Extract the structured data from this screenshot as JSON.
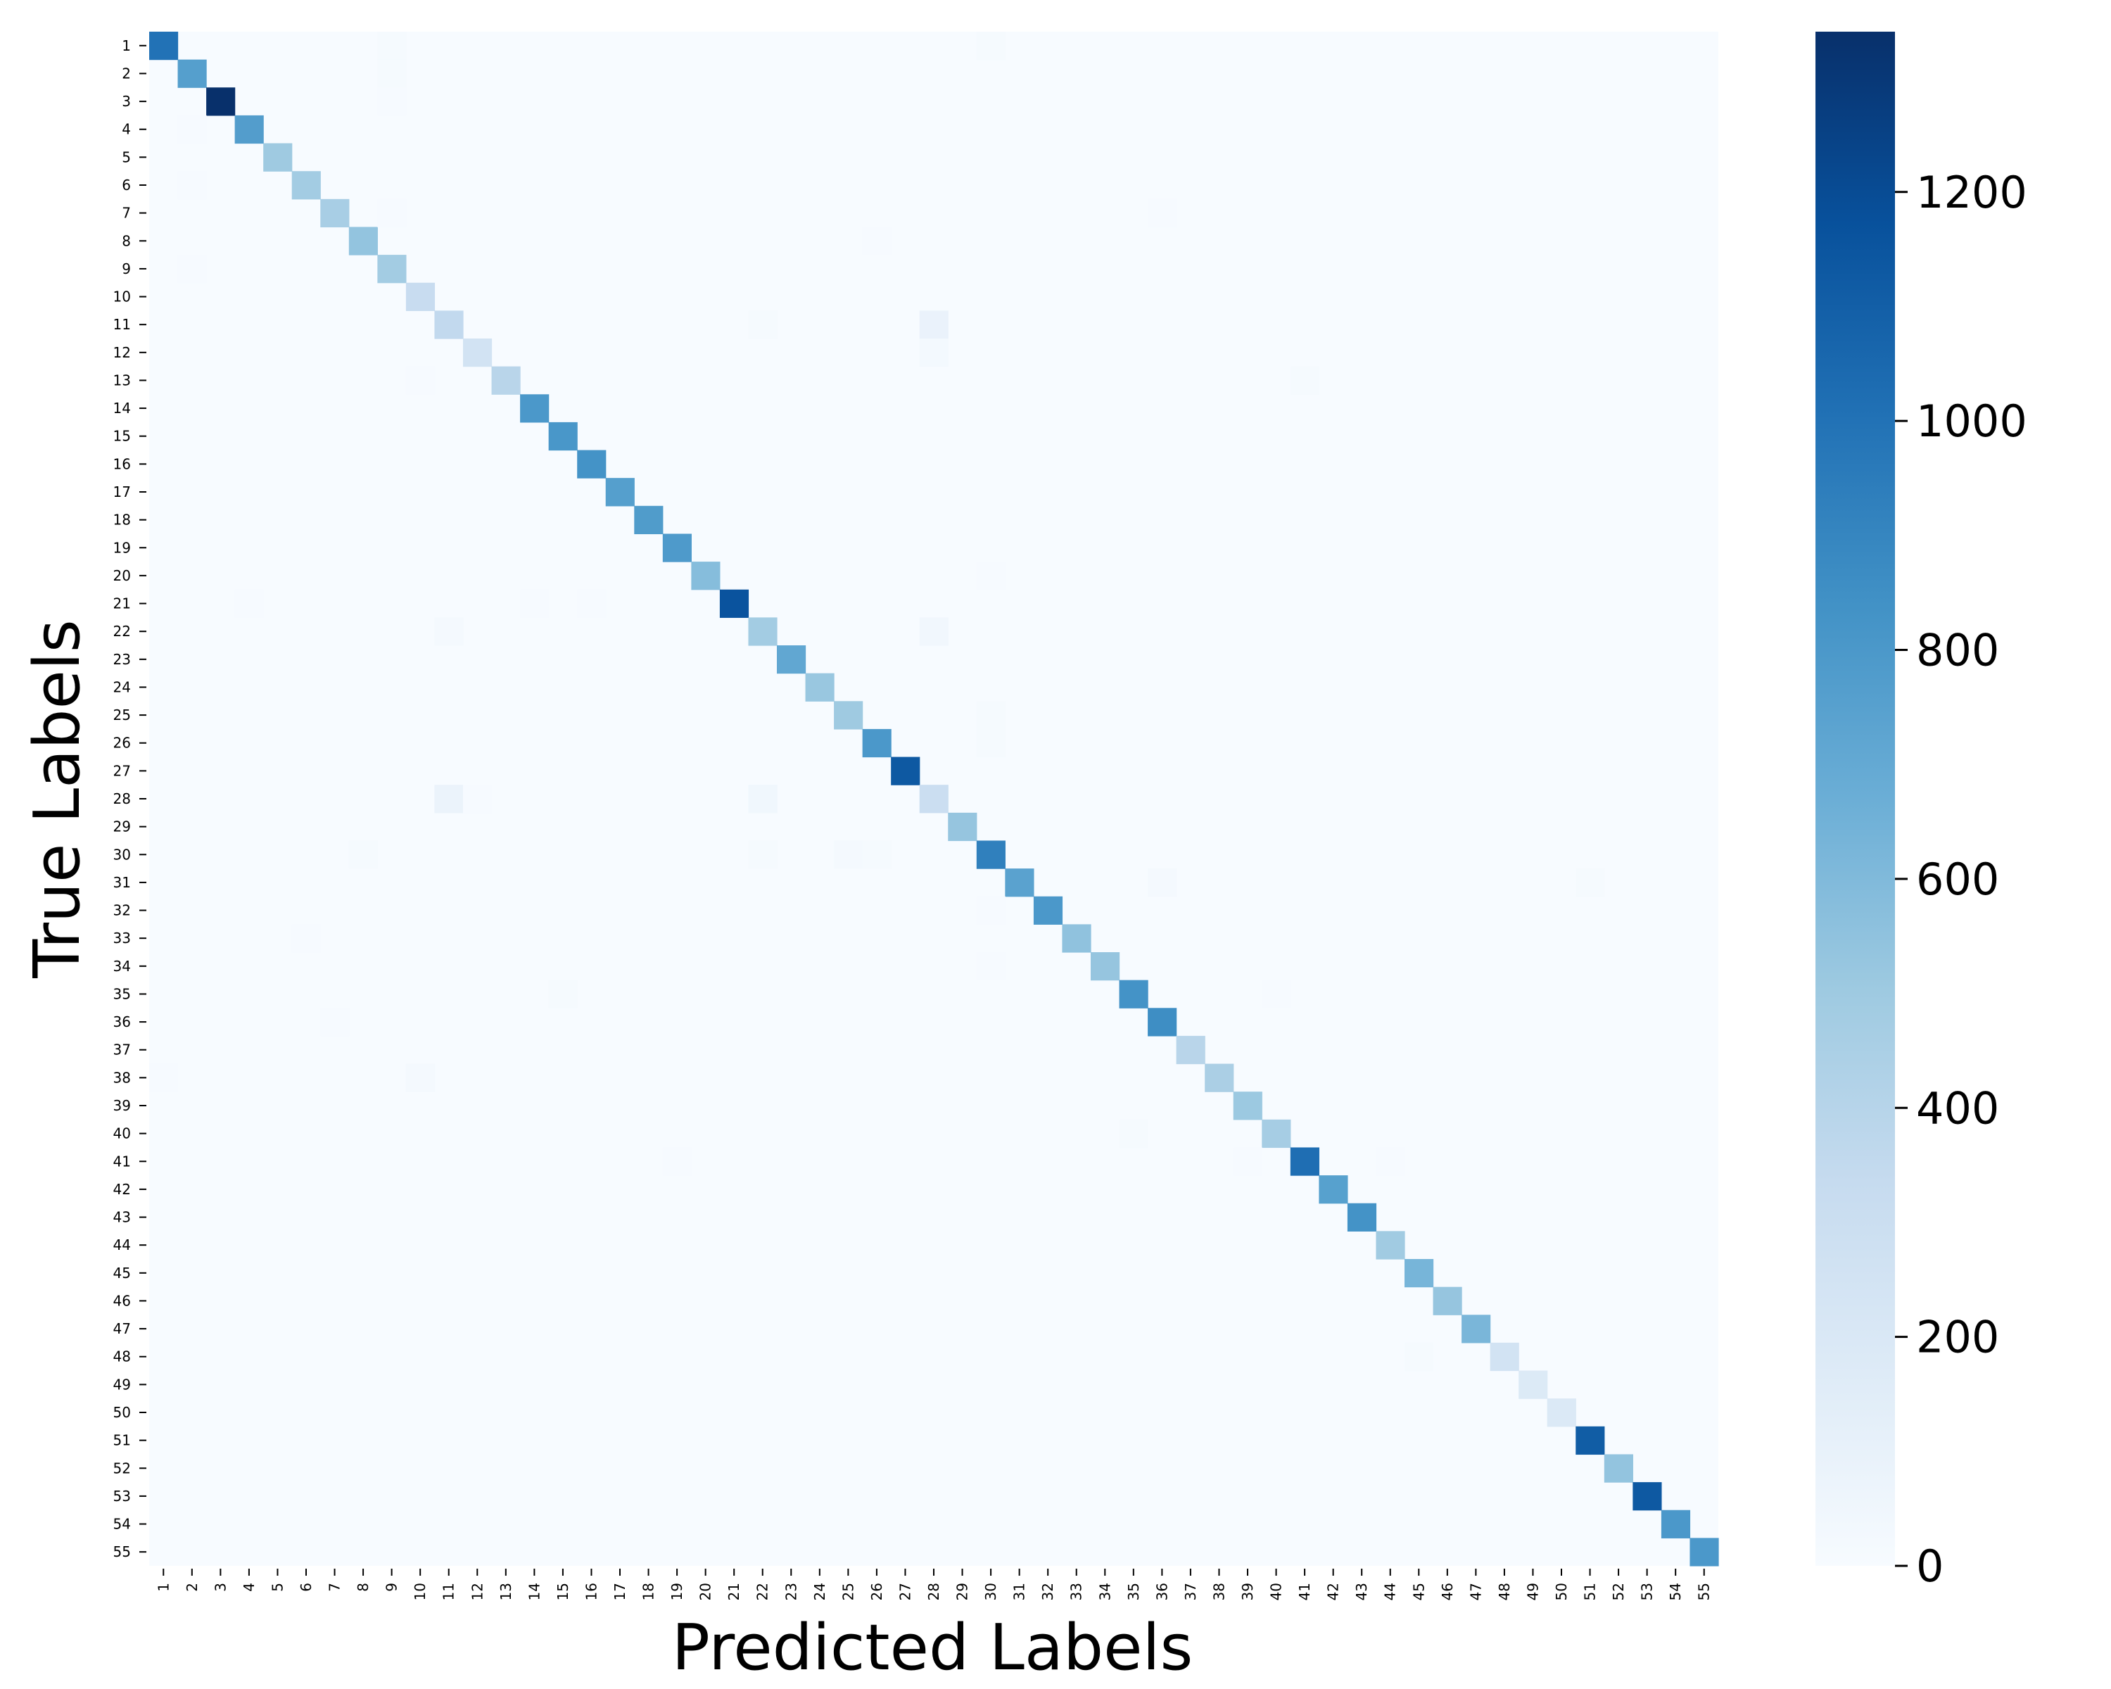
{
  "chart_data": {
    "type": "heatmap",
    "title": "",
    "xlabel": "Predicted Labels",
    "ylabel": "True Labels",
    "labels": [
      "1",
      "2",
      "3",
      "4",
      "5",
      "6",
      "7",
      "8",
      "9",
      "10",
      "11",
      "12",
      "13",
      "14",
      "15",
      "16",
      "17",
      "18",
      "19",
      "20",
      "21",
      "22",
      "23",
      "24",
      "25",
      "26",
      "27",
      "28",
      "29",
      "30",
      "31",
      "32",
      "33",
      "34",
      "35",
      "36",
      "37",
      "38",
      "39",
      "40",
      "41",
      "42",
      "43",
      "44",
      "45",
      "46",
      "47",
      "48",
      "49",
      "50",
      "51",
      "52",
      "53",
      "54",
      "55"
    ],
    "diagonal": [
      1000,
      760,
      1340,
      770,
      500,
      480,
      460,
      540,
      480,
      320,
      350,
      250,
      390,
      800,
      810,
      830,
      760,
      780,
      790,
      580,
      1160,
      480,
      710,
      520,
      500,
      800,
      1130,
      300,
      530,
      930,
      740,
      800,
      550,
      530,
      830,
      860,
      390,
      450,
      510,
      470,
      1020,
      750,
      830,
      490,
      630,
      530,
      620,
      250,
      180,
      190,
      1110,
      540,
      1130,
      800,
      800
    ],
    "off_diagonal": [
      {
        "true": "1",
        "pred": "9",
        "value": 15
      },
      {
        "true": "1",
        "pred": "30",
        "value": 15
      },
      {
        "true": "2",
        "pred": "9",
        "value": 15
      },
      {
        "true": "3",
        "pred": "9",
        "value": 10
      },
      {
        "true": "4",
        "pred": "2",
        "value": 10
      },
      {
        "true": "6",
        "pred": "2",
        "value": 10
      },
      {
        "true": "7",
        "pred": "9",
        "value": 10
      },
      {
        "true": "7",
        "pred": "36",
        "value": 10
      },
      {
        "true": "8",
        "pred": "26",
        "value": 10
      },
      {
        "true": "9",
        "pred": "2",
        "value": 10
      },
      {
        "true": "11",
        "pred": "22",
        "value": 15
      },
      {
        "true": "11",
        "pred": "28",
        "value": 90
      },
      {
        "true": "12",
        "pred": "28",
        "value": 25
      },
      {
        "true": "13",
        "pred": "10",
        "value": 10
      },
      {
        "true": "13",
        "pred": "41",
        "value": 15
      },
      {
        "true": "20",
        "pred": "30",
        "value": 10
      },
      {
        "true": "21",
        "pred": "4",
        "value": 10
      },
      {
        "true": "21",
        "pred": "14",
        "value": 10
      },
      {
        "true": "21",
        "pred": "16",
        "value": 10
      },
      {
        "true": "22",
        "pred": "11",
        "value": 20
      },
      {
        "true": "22",
        "pred": "28",
        "value": 40
      },
      {
        "true": "25",
        "pred": "30",
        "value": 15
      },
      {
        "true": "26",
        "pred": "30",
        "value": 15
      },
      {
        "true": "28",
        "pred": "11",
        "value": 80
      },
      {
        "true": "28",
        "pred": "12",
        "value": 10
      },
      {
        "true": "28",
        "pred": "22",
        "value": 45
      },
      {
        "true": "30",
        "pred": "8",
        "value": 15
      },
      {
        "true": "30",
        "pred": "22",
        "value": 15
      },
      {
        "true": "30",
        "pred": "25",
        "value": 20
      },
      {
        "true": "30",
        "pred": "26",
        "value": 15
      },
      {
        "true": "31",
        "pred": "36",
        "value": 20
      },
      {
        "true": "31",
        "pred": "51",
        "value": 15
      },
      {
        "true": "32",
        "pred": "30",
        "value": 10
      },
      {
        "true": "33",
        "pred": "6",
        "value": 10
      },
      {
        "true": "34",
        "pred": "30",
        "value": 10
      },
      {
        "true": "35",
        "pred": "15",
        "value": 15
      },
      {
        "true": "35",
        "pred": "40",
        "value": 10
      },
      {
        "true": "36",
        "pred": "7",
        "value": 10
      },
      {
        "true": "38",
        "pred": "1",
        "value": 10
      },
      {
        "true": "38",
        "pred": "10",
        "value": 20
      },
      {
        "true": "40",
        "pred": "35",
        "value": 15
      },
      {
        "true": "41",
        "pred": "19",
        "value": 10
      },
      {
        "true": "41",
        "pred": "39",
        "value": 10
      },
      {
        "true": "41",
        "pred": "44",
        "value": 10
      },
      {
        "true": "48",
        "pred": "45",
        "value": 15
      }
    ],
    "colorbar": {
      "min": 0,
      "max": 1340,
      "ticks": [
        "0",
        "200",
        "400",
        "600",
        "800",
        "1000",
        "1200"
      ],
      "tick_values": [
        0,
        200,
        400,
        600,
        800,
        1000,
        1200
      ],
      "colormap": "Blues",
      "colors": [
        "#f7fbff",
        "#deebf7",
        "#c6dbef",
        "#9ecae1",
        "#6baed6",
        "#4292c6",
        "#2171b5",
        "#08519c",
        "#08306b"
      ]
    }
  }
}
